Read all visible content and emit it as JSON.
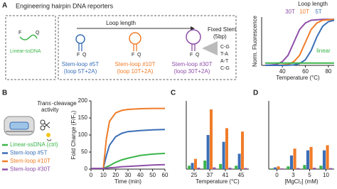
{
  "diagram": {
    "panel_labels": [
      "A",
      "B",
      "C",
      "D"
    ],
    "title": "Engineering hairpin DNA reporters",
    "linear_label": "Linear-ssDNA",
    "loop_length": "Loop length",
    "fluor": "F",
    "quench": "Q",
    "stem_loops": [
      {
        "name": "Stem-loop #5T",
        "loop": "(loop 5T+2A)"
      },
      {
        "name": "Stem-loop #10T",
        "loop": "(loop 10T+2A)"
      },
      {
        "name": "Stem-loop #30T",
        "loop": "(loop 30T+2A)"
      }
    ],
    "fixed_stem": "Fixed Stem",
    "stem_bp": "(5bp)",
    "stem_pairs": [
      "C-G",
      "T-A",
      "A-T",
      "C-G"
    ],
    "trans": "Trans",
    "cleavage": "-cleavage",
    "activity": "activity"
  },
  "chart_data": [
    {
      "type": "line",
      "x_label": "Temperature (°C)",
      "y_label": "Norm. Fluorescence",
      "legend_title": "Loop length",
      "x": [
        25,
        30,
        35,
        40,
        45,
        50,
        55,
        60,
        65,
        70,
        75,
        80,
        85
      ],
      "xlim": [
        22,
        85
      ],
      "xticks": [
        40,
        60,
        80
      ],
      "ylim": [
        0,
        1.05
      ],
      "series": [
        {
          "name": "30T",
          "color": "#8e4fa8",
          "values": [
            0.002,
            0.007,
            0.02,
            0.08,
            0.22,
            0.5,
            0.78,
            0.92,
            0.98,
            0.99,
            1,
            1,
            1
          ]
        },
        {
          "name": "10T",
          "color": "#f07c28",
          "values": [
            0,
            0,
            0.002,
            0.007,
            0.02,
            0.08,
            0.22,
            0.5,
            0.78,
            0.92,
            0.98,
            0.99,
            1
          ]
        },
        {
          "name": "5T",
          "color": "#3b6fb6",
          "values": [
            0,
            0,
            0,
            0,
            0.003,
            0.01,
            0.04,
            0.12,
            0.32,
            0.62,
            0.85,
            0.95,
            0.98
          ]
        },
        {
          "name": "linear",
          "color": "#3bb54a",
          "values": [
            0.05,
            0.05,
            0.05,
            0.05,
            0.05,
            0.05,
            0.05,
            0.05,
            0.05,
            0.05,
            0.05,
            0.05,
            0.05
          ]
        }
      ]
    },
    {
      "type": "line",
      "x_label": "Time (min)",
      "y_label": "Fold Change (F/F₀)",
      "x": [
        0,
        5,
        10,
        12.5,
        15,
        20,
        25,
        30,
        40,
        50,
        60
      ],
      "xlim": [
        0,
        60
      ],
      "xticks": [
        0,
        10,
        20,
        30,
        40,
        50,
        60
      ],
      "ylim": [
        0,
        200
      ],
      "yticks": [
        0,
        50,
        100,
        150,
        200
      ],
      "series": [
        {
          "name": "Linear-ssDNA (ctrl)",
          "color": "#3bb54a",
          "values": [
            2,
            2,
            2,
            6,
            10,
            20,
            27,
            32,
            40,
            44,
            46
          ]
        },
        {
          "name": "Stem-loop #5T",
          "color": "#3b6fb6",
          "values": [
            2,
            2,
            2,
            40,
            70,
            95,
            105,
            110,
            113,
            115,
            116
          ]
        },
        {
          "name": "Stem-loop #10T",
          "color": "#f07c28",
          "values": [
            2,
            2,
            2,
            90,
            140,
            165,
            172,
            175,
            177,
            178,
            178
          ]
        },
        {
          "name": "Stem-loop #30T",
          "color": "#8e4fa8",
          "values": [
            2,
            2,
            2,
            3,
            4,
            5,
            7,
            8,
            10,
            12,
            13
          ]
        }
      ]
    },
    {
      "type": "bar",
      "x_label": "Temperature (°C)",
      "categories": [
        "25",
        "37",
        "41",
        "45"
      ],
      "ylim": [
        0,
        200
      ],
      "series": [
        {
          "color": "#3bb54a",
          "values": [
            10,
            25,
            15,
            10
          ]
        },
        {
          "color": "#3b6fb6",
          "values": [
            18,
            100,
            80,
            45
          ]
        },
        {
          "color": "#f07c28",
          "values": [
            30,
            175,
            120,
            110
          ]
        },
        {
          "color": "#8e4fa8",
          "values": [
            4,
            5,
            4,
            3
          ]
        }
      ]
    },
    {
      "type": "bar",
      "x_label": "[MgCl₂] (mM)",
      "categories": [
        "0",
        "3",
        "5",
        "10"
      ],
      "ylim": [
        0,
        200
      ],
      "series": [
        {
          "color": "#3bb54a",
          "values": [
            2,
            8,
            12,
            10
          ]
        },
        {
          "color": "#3b6fb6",
          "values": [
            5,
            40,
            55,
            55
          ]
        },
        {
          "color": "#f07c28",
          "values": [
            8,
            60,
            65,
            70
          ]
        },
        {
          "color": "#8e4fa8",
          "values": [
            2,
            3,
            4,
            3
          ]
        }
      ]
    }
  ]
}
